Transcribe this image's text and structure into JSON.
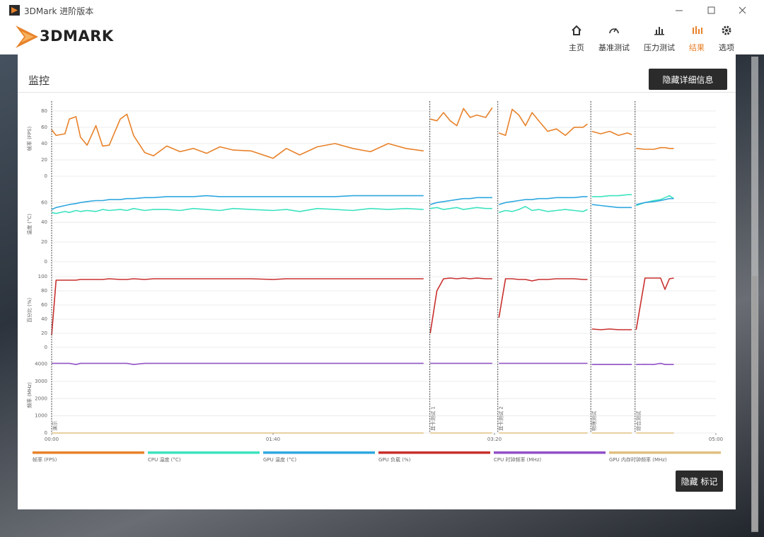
{
  "window": {
    "title": "3DMark 进阶版本"
  },
  "logo": "3DMARK",
  "nav": {
    "items": [
      "主页",
      "基准测试",
      "压力测试",
      "结果",
      "选项"
    ],
    "active": 3
  },
  "section": {
    "title": "监控",
    "button": "隐藏详细信息"
  },
  "chart_data": {
    "type": "line",
    "x": [
      0,
      2,
      6,
      8,
      11,
      13,
      16,
      20,
      23,
      26,
      31,
      34,
      37,
      42,
      46,
      52,
      58,
      64,
      70,
      76,
      82,
      90,
      100,
      106,
      112,
      120,
      128,
      136,
      144,
      152,
      160,
      168,
      170.8,
      171,
      174,
      177,
      180,
      183,
      186,
      189,
      192,
      196,
      199,
      201.5,
      202,
      205,
      208,
      211,
      214,
      217,
      220,
      224,
      228,
      232,
      236,
      240,
      242,
      243.5,
      244,
      248,
      252,
      256,
      260,
      262,
      263.5,
      264,
      268,
      272,
      275,
      277,
      279,
      281
    ],
    "xlim": [
      0,
      300
    ],
    "xticks": [
      {
        "value": 0,
        "label": "00:00"
      },
      {
        "value": 100,
        "label": "01:40"
      },
      {
        "value": 200,
        "label": "03:20"
      },
      {
        "value": 300,
        "label": "05:00"
      }
    ],
    "markers": [
      {
        "x": 0,
        "label": "演示"
      },
      {
        "x": 170.8,
        "label": "显卡测试 1"
      },
      {
        "x": 201.5,
        "label": "显卡测试 2"
      },
      {
        "x": 243.5,
        "label": "物理测试"
      },
      {
        "x": 263.5,
        "label": "综合测试"
      }
    ],
    "grid": true,
    "panels": [
      {
        "ylabel": "帧率 (FPS)",
        "ylim": [
          0,
          92
        ],
        "yticks": [
          0,
          20,
          40,
          60,
          80
        ],
        "series": [
          {
            "name": "帧率 (FPS)",
            "color": "#e8822a",
            "values": [
              57,
              50,
              52,
              70,
              73,
              48,
              38,
              62,
              37,
              38,
              70,
              76,
              50,
              29,
              25,
              37,
              30,
              34,
              28,
              36,
              32,
              31,
              22,
              34,
              26,
              36,
              40,
              34,
              30,
              40,
              34,
              31,
              null,
              70,
              68,
              78,
              68,
              62,
              83,
              72,
              75,
              72,
              84,
              null,
              53,
              50,
              82,
              75,
              62,
              78,
              68,
              55,
              58,
              50,
              60,
              60,
              64,
              null,
              55,
              52,
              55,
              50,
              53,
              51,
              null,
              34,
              33,
              33,
              35,
              35,
              34,
              34
            ]
          }
        ]
      },
      {
        "ylabel": "温度 (°C)",
        "ylim": [
          0,
          76
        ],
        "yticks": [
          0,
          20,
          40,
          60
        ],
        "series": [
          {
            "name": "CPU 温度 (°C)",
            "color": "#3de3c0",
            "values": [
              50,
              49,
              51,
              50,
              52,
              51,
              52,
              51,
              53,
              52,
              53,
              52,
              54,
              52,
              53,
              53,
              52,
              54,
              53,
              52,
              54,
              53,
              52,
              53,
              51,
              54,
              53,
              52,
              54,
              53,
              54,
              53,
              null,
              54,
              55,
              53,
              54,
              55,
              53,
              54,
              55,
              54,
              54,
              null,
              50,
              52,
              51,
              53,
              56,
              52,
              53,
              51,
              52,
              53,
              52,
              51,
              53,
              null,
              66,
              66,
              67,
              67,
              68,
              68,
              null,
              57,
              60,
              62,
              63,
              65,
              67,
              64
            ]
          },
          {
            "name": "GPU 温度 (°C)",
            "color": "#2fa8e0",
            "values": [
              53,
              55,
              57,
              58,
              59,
              60,
              61,
              62,
              62,
              63,
              63,
              64,
              64,
              65,
              65,
              66,
              66,
              66,
              67,
              66,
              66,
              66,
              66,
              66,
              66,
              66,
              66,
              67,
              67,
              67,
              67,
              67,
              null,
              58,
              60,
              61,
              62,
              63,
              64,
              64,
              65,
              65,
              65,
              null,
              58,
              60,
              61,
              62,
              63,
              63,
              64,
              64,
              65,
              65,
              65,
              66,
              66,
              null,
              58,
              57,
              56,
              55,
              55,
              55,
              null,
              58,
              60,
              61,
              62,
              63,
              64,
              64
            ]
          }
        ]
      },
      {
        "ylabel": "百分比 (%)",
        "ylim": [
          0,
          105
        ],
        "yticks": [
          0,
          20,
          40,
          60,
          80,
          100
        ],
        "series": [
          {
            "name": "GPU 负载 (%)",
            "color": "#c8302e",
            "values": [
              17,
              95,
              95,
              95,
              95,
              96,
              96,
              96,
              96,
              97,
              96,
              96,
              97,
              96,
              97,
              97,
              97,
              97,
              97,
              97,
              97,
              97,
              96,
              97,
              97,
              97,
              97,
              97,
              97,
              97,
              97,
              97,
              null,
              20,
              80,
              97,
              98,
              97,
              98,
              97,
              98,
              97,
              97,
              null,
              42,
              97,
              97,
              96,
              96,
              94,
              96,
              96,
              97,
              97,
              97,
              96,
              96,
              null,
              26,
              25,
              26,
              25,
              25,
              25,
              null,
              25,
              98,
              98,
              98,
              82,
              97,
              98
            ]
          }
        ]
      },
      {
        "ylabel": "频率 (MHz)",
        "ylim": [
          0,
          4400
        ],
        "yticks": [
          0,
          1000,
          2000,
          3000,
          4000
        ],
        "series": [
          {
            "name": "CPU 时钟频率 (MHz)",
            "color": "#9150c8",
            "values": [
              4050,
              4050,
              4050,
              4050,
              3980,
              4050,
              4050,
              4050,
              4050,
              4050,
              4050,
              4050,
              3980,
              4050,
              4050,
              4050,
              4050,
              4050,
              4050,
              4050,
              4050,
              4050,
              4050,
              4050,
              4050,
              4050,
              4050,
              4050,
              4050,
              4050,
              4050,
              4050,
              null,
              4050,
              4050,
              4050,
              4050,
              4050,
              4050,
              4050,
              4050,
              4050,
              4050,
              null,
              4050,
              4050,
              4050,
              4050,
              4050,
              4050,
              4050,
              4050,
              4050,
              4050,
              4050,
              4050,
              4050,
              null,
              3980,
              3980,
              3980,
              3980,
              3980,
              3980,
              null,
              3980,
              3990,
              3980,
              4050,
              3980,
              3980,
              3980
            ]
          },
          {
            "name": "GPU 内存时钟频率 (MHz)",
            "color": "#e0c080",
            "values": [
              0,
              0,
              0,
              0,
              0,
              0,
              0,
              0,
              0,
              0,
              0,
              0,
              0,
              0,
              0,
              0,
              0,
              0,
              0,
              0,
              0,
              0,
              0,
              0,
              0,
              0,
              0,
              0,
              0,
              0,
              0,
              0,
              null,
              0,
              0,
              0,
              0,
              0,
              0,
              0,
              0,
              0,
              0,
              null,
              0,
              0,
              0,
              0,
              0,
              0,
              0,
              0,
              0,
              0,
              0,
              0,
              0,
              null,
              0,
              0,
              0,
              0,
              0,
              0,
              null,
              0,
              0,
              0,
              0,
              0,
              0,
              0
            ]
          }
        ]
      }
    ]
  },
  "footer_button": "隐藏 标记"
}
